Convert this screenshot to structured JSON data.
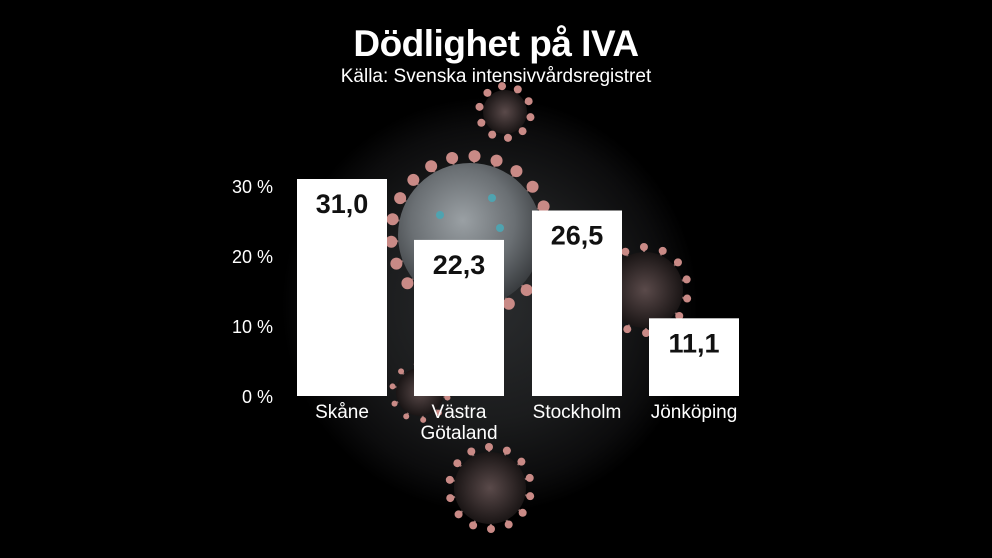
{
  "header": {
    "title": "Dödlighet på IVA",
    "subtitle": "Källa: Svenska intensivvårdsregistret"
  },
  "colors": {
    "background": "#000000",
    "bar": "#ffffff",
    "text": "#ffffff",
    "data_label": "#111111",
    "virus_core": "#6f7478",
    "virus_spike": "#c98a86",
    "virus_accent": "#4fa3b0"
  },
  "chart_data": {
    "type": "bar",
    "categories": [
      [
        "Skåne"
      ],
      [
        "Västra",
        "Götaland"
      ],
      [
        "Stockholm"
      ],
      [
        "Jönköping"
      ]
    ],
    "values": [
      31.0,
      22.3,
      26.5,
      11.1
    ],
    "data_labels": [
      "31,0",
      "22,3",
      "26,5",
      "11,1"
    ],
    "y_ticks": [
      0,
      10,
      20,
      30
    ],
    "y_tick_labels": [
      "0 %",
      "10 %",
      "20 %",
      "30 %"
    ],
    "ylim": [
      0,
      31
    ],
    "grid": false,
    "legend": "none"
  }
}
